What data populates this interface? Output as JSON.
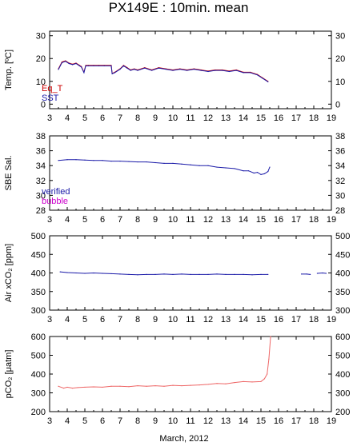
{
  "title": "PX149E : 10min. mean",
  "xlabel": "March, 2012",
  "chart_data": [
    {
      "id": "temp",
      "type": "line",
      "ylabel": "Temp. [ºC]",
      "xlim": [
        3,
        19
      ],
      "ylim": [
        -2,
        32
      ],
      "yticks": [
        0,
        10,
        20,
        30
      ],
      "xticks": [
        3,
        4,
        5,
        6,
        7,
        8,
        9,
        10,
        11,
        12,
        13,
        14,
        15,
        16,
        17,
        18,
        19
      ],
      "legend": [
        {
          "name": "Eq_T",
          "color": "#cc0000"
        },
        {
          "name": "SST",
          "color": "#1a1aa8"
        }
      ],
      "series": [
        {
          "name": "Eq_T",
          "color": "#cc0000",
          "x": [
            3.5,
            3.7,
            3.9,
            4.1,
            4.3,
            4.5,
            4.7,
            4.8,
            4.95,
            5.05,
            5.2,
            5.5,
            5.8,
            6.1,
            6.5,
            6.55,
            6.7,
            7.0,
            7.2,
            7.4,
            7.6,
            7.8,
            8.0,
            8.4,
            8.8,
            9.2,
            9.6,
            10.0,
            10.4,
            10.8,
            11.2,
            11.6,
            12.0,
            12.4,
            12.8,
            13.2,
            13.6,
            14.0,
            14.4,
            14.8,
            15.1,
            15.4
          ],
          "y": [
            15.5,
            18.5,
            19.0,
            18.0,
            17.5,
            18.0,
            17.0,
            16.5,
            14.0,
            17.0,
            17.0,
            17.0,
            17.0,
            17.0,
            17.0,
            13.5,
            14.0,
            15.5,
            17.0,
            16.0,
            15.0,
            15.5,
            15.0,
            16.0,
            15.0,
            16.0,
            15.5,
            15.0,
            15.5,
            15.0,
            15.5,
            15.0,
            14.5,
            15.0,
            15.0,
            14.5,
            15.0,
            14.0,
            14.0,
            13.0,
            11.5,
            10.0
          ]
        },
        {
          "name": "SST",
          "color": "#1a1aa8",
          "x": [
            3.5,
            3.7,
            3.9,
            4.1,
            4.3,
            4.5,
            4.7,
            4.8,
            4.95,
            5.05,
            5.2,
            5.5,
            5.8,
            6.1,
            6.5,
            6.55,
            6.7,
            7.0,
            7.2,
            7.4,
            7.6,
            7.8,
            8.0,
            8.4,
            8.8,
            9.2,
            9.6,
            10.0,
            10.4,
            10.8,
            11.2,
            11.6,
            12.0,
            12.4,
            12.8,
            13.2,
            13.6,
            14.0,
            14.4,
            14.8,
            15.1,
            15.4
          ],
          "y": [
            15.2,
            18.2,
            18.8,
            17.8,
            17.3,
            17.8,
            16.8,
            16.3,
            13.8,
            16.8,
            16.8,
            16.8,
            16.8,
            16.8,
            16.8,
            13.3,
            13.8,
            15.3,
            16.8,
            15.8,
            14.8,
            15.3,
            14.8,
            15.8,
            14.8,
            15.8,
            15.3,
            14.8,
            15.3,
            14.8,
            15.3,
            14.8,
            14.3,
            14.8,
            14.8,
            14.3,
            14.8,
            13.8,
            13.8,
            12.8,
            11.3,
            9.8
          ]
        }
      ]
    },
    {
      "id": "sal",
      "type": "line",
      "ylabel": "SBE Sal.",
      "xlim": [
        3,
        19
      ],
      "ylim": [
        28,
        38
      ],
      "yticks": [
        28,
        30,
        32,
        34,
        36,
        38
      ],
      "xticks": [
        3,
        4,
        5,
        6,
        7,
        8,
        9,
        10,
        11,
        12,
        13,
        14,
        15,
        16,
        17,
        18,
        19
      ],
      "legend": [
        {
          "name": "verified",
          "color": "#1a1aa8"
        },
        {
          "name": "bubble",
          "color": "#cc00cc"
        }
      ],
      "series": [
        {
          "name": "verified",
          "color": "#1a1aa8",
          "x": [
            3.5,
            4.0,
            4.5,
            5.0,
            5.5,
            6.0,
            6.5,
            7.0,
            7.5,
            8.0,
            8.5,
            9.0,
            9.5,
            10.0,
            10.5,
            11.0,
            11.5,
            12.0,
            12.5,
            13.0,
            13.5,
            14.0,
            14.3,
            14.6,
            14.8,
            15.0,
            15.2,
            15.4,
            15.5
          ],
          "y": [
            34.7,
            34.8,
            34.8,
            34.75,
            34.7,
            34.7,
            34.6,
            34.6,
            34.55,
            34.5,
            34.5,
            34.4,
            34.3,
            34.3,
            34.2,
            34.1,
            34.0,
            34.0,
            33.8,
            33.7,
            33.6,
            33.3,
            33.3,
            33.0,
            33.1,
            32.8,
            32.9,
            33.2,
            33.8
          ]
        },
        {
          "name": "bubble",
          "color": "#cc00cc",
          "x": [],
          "y": []
        }
      ]
    },
    {
      "id": "air",
      "type": "line",
      "ylabel": "Air xCO₂ [ppm]",
      "xlim": [
        3,
        19
      ],
      "ylim": [
        300,
        500
      ],
      "yticks": [
        300,
        350,
        400,
        450,
        500
      ],
      "xticks": [
        3,
        4,
        5,
        6,
        7,
        8,
        9,
        10,
        11,
        12,
        13,
        14,
        15,
        16,
        17,
        18,
        19
      ],
      "series": [
        {
          "name": "air",
          "color": "#1a1aa8",
          "x": [
            3.6,
            4.0,
            4.5,
            5.0,
            5.5,
            6.0,
            6.5,
            7.0,
            7.5,
            8.0,
            8.5,
            9.0,
            9.5,
            10.0,
            10.5,
            11.0,
            11.5,
            12.0,
            12.5,
            13.0,
            13.5,
            14.0,
            14.5,
            15.0,
            15.4
          ],
          "y": [
            403,
            401,
            400,
            399,
            400,
            399,
            398,
            397,
            396,
            395,
            396,
            396,
            397,
            396,
            397,
            396,
            396,
            396,
            397,
            396,
            396,
            396,
            395,
            396,
            396
          ]
        },
        {
          "name": "air-b",
          "color": "#1a1aa8",
          "x": [
            17.3,
            17.6,
            17.8
          ],
          "y": [
            397,
            397,
            396
          ]
        },
        {
          "name": "air-c",
          "color": "#1a1aa8",
          "x": [
            18.2,
            18.5,
            18.7
          ],
          "y": [
            399,
            400,
            399
          ]
        }
      ]
    },
    {
      "id": "pco2",
      "type": "line",
      "ylabel": "pCO₂ [μatm]",
      "xlim": [
        3,
        19
      ],
      "ylim": [
        200,
        600
      ],
      "yticks": [
        200,
        300,
        400,
        500,
        600
      ],
      "xticks": [
        3,
        4,
        5,
        6,
        7,
        8,
        9,
        10,
        11,
        12,
        13,
        14,
        15,
        16,
        17,
        18,
        19
      ],
      "series": [
        {
          "name": "pco2",
          "color": "#ee6666",
          "x": [
            3.5,
            3.8,
            4.0,
            4.3,
            4.6,
            5.0,
            5.5,
            6.0,
            6.5,
            7.0,
            7.5,
            8.0,
            8.5,
            9.0,
            9.5,
            10.0,
            10.5,
            11.0,
            11.5,
            12.0,
            12.5,
            13.0,
            13.5,
            14.0,
            14.5,
            15.0,
            15.2,
            15.35,
            15.45,
            15.55
          ],
          "y": [
            335,
            325,
            330,
            325,
            328,
            330,
            332,
            330,
            335,
            335,
            333,
            338,
            335,
            338,
            335,
            340,
            338,
            340,
            342,
            345,
            350,
            348,
            355,
            360,
            358,
            360,
            375,
            400,
            480,
            600
          ]
        }
      ]
    }
  ]
}
